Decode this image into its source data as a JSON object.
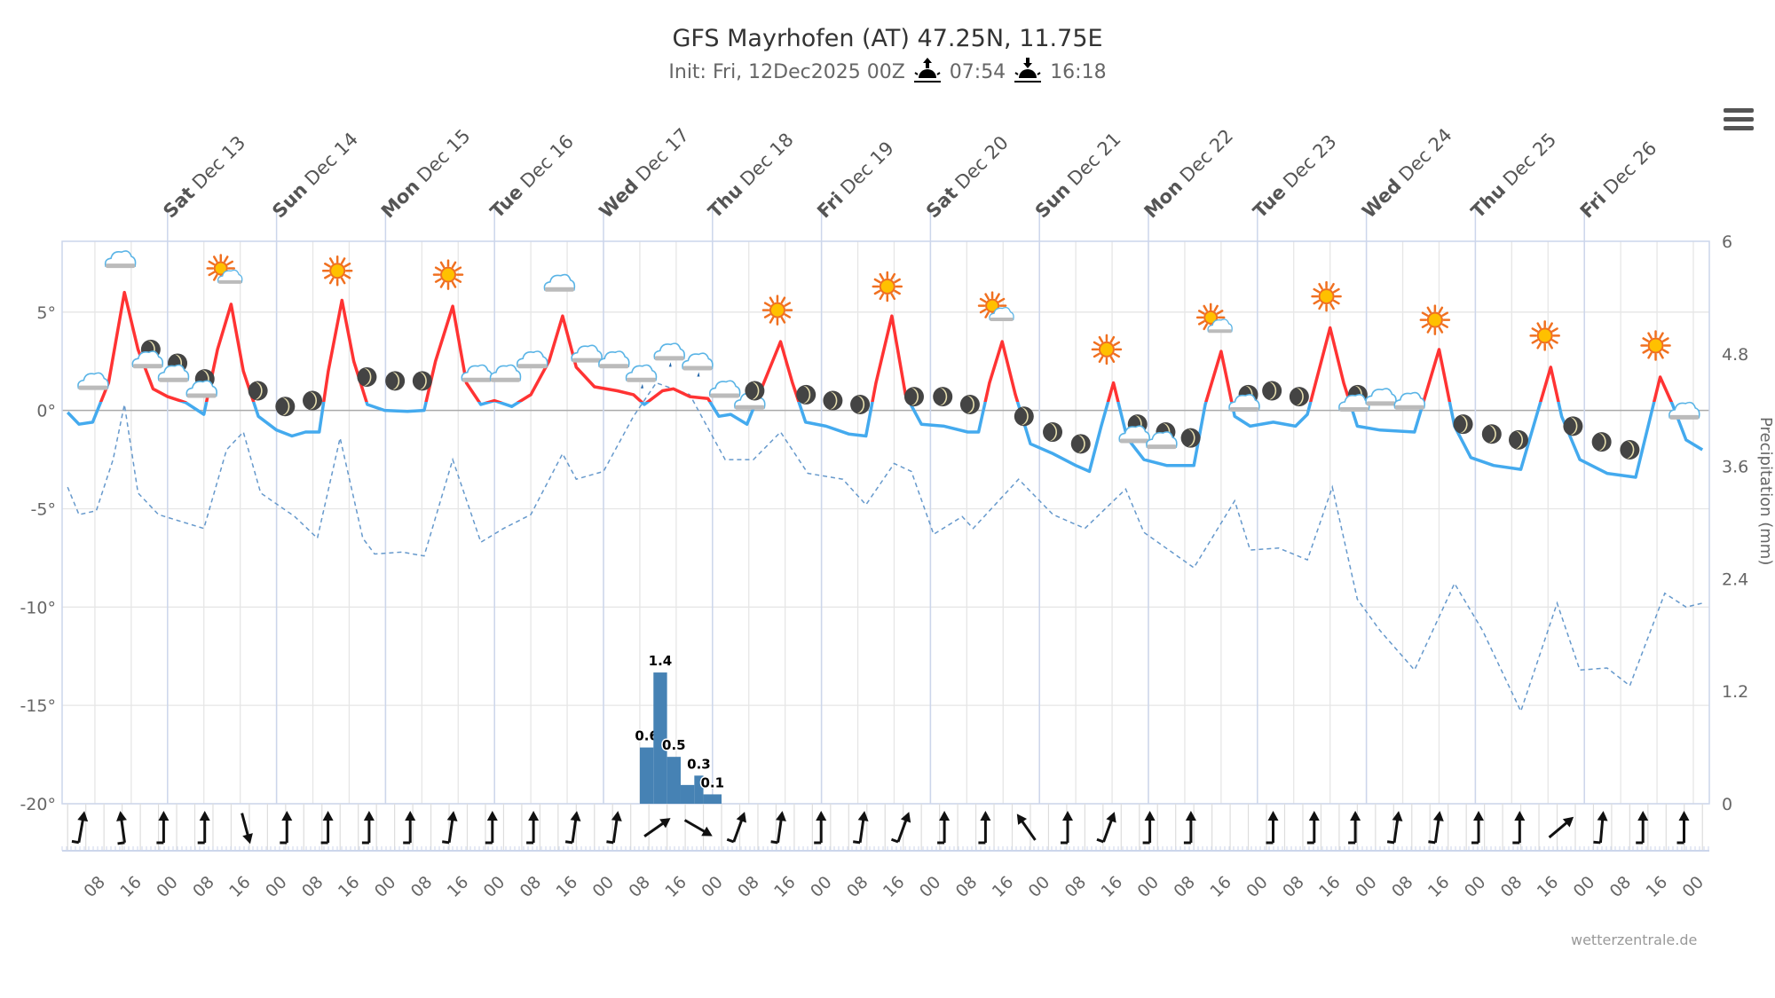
{
  "header": {
    "title": "GFS Mayrhofen (AT) 47.25N, 11.75E",
    "init": "Init: Fri, 12Dec2025 00Z",
    "sunrise": "07:54",
    "sunset": "16:18",
    "menu_icon": "hamburger-menu-icon"
  },
  "credits": "wetterzentrale.de",
  "colors": {
    "temp_above_zero": "#ff3333",
    "temp_below_zero": "#44aaee",
    "dashed_line": "#6699cc",
    "precip": "#4682b4",
    "grid": "#e6e6e6",
    "axis": "#ccd6eb"
  },
  "chart_data": {
    "type": "line",
    "title": "GFS Mayrhofen (AT) 47.25N, 11.75E",
    "x_unit": "hours since Fri 12 Dec 2025 00Z",
    "xlim": [
      0,
      363.5
    ],
    "day_labels": [
      {
        "h": 24,
        "wd": "Sat",
        "d": "Dec 13"
      },
      {
        "h": 48,
        "wd": "Sun",
        "d": "Dec 14"
      },
      {
        "h": 72,
        "wd": "Mon",
        "d": "Dec 15"
      },
      {
        "h": 96,
        "wd": "Tue",
        "d": "Dec 16"
      },
      {
        "h": 120,
        "wd": "Wed",
        "d": "Dec 17"
      },
      {
        "h": 144,
        "wd": "Thu",
        "d": "Dec 18"
      },
      {
        "h": 168,
        "wd": "Fri",
        "d": "Dec 19"
      },
      {
        "h": 192,
        "wd": "Sat",
        "d": "Dec 20"
      },
      {
        "h": 216,
        "wd": "Sun",
        "d": "Dec 21"
      },
      {
        "h": 240,
        "wd": "Mon",
        "d": "Dec 22"
      },
      {
        "h": 264,
        "wd": "Tue",
        "d": "Dec 23"
      },
      {
        "h": 288,
        "wd": "Wed",
        "d": "Dec 24"
      },
      {
        "h": 312,
        "wd": "Thu",
        "d": "Dec 25"
      },
      {
        "h": 336,
        "wd": "Fri",
        "d": "Dec 26"
      }
    ],
    "x_tick_labels": [
      "08",
      "16",
      "00"
    ],
    "y_left": {
      "ylim": [
        -20,
        8.6
      ],
      "ticks": [
        "5°",
        "0°",
        "-5°",
        "-10°",
        "-15°",
        "-20°"
      ],
      "tick_values": [
        5,
        0,
        -5,
        -10,
        -15,
        -20
      ]
    },
    "y_right": {
      "label": "Precipitation (mm)",
      "ylim": [
        0,
        6
      ],
      "ticks": [
        "6",
        "4.8",
        "3.6",
        "2.4",
        "1.2",
        "0"
      ],
      "tick_values": [
        6,
        4.8,
        3.6,
        2.4,
        1.2,
        0
      ]
    },
    "grid": true,
    "temperature": [
      [
        2,
        -0.1
      ],
      [
        4.5,
        -0.7
      ],
      [
        7.5,
        -0.6
      ],
      [
        11,
        1.4
      ],
      [
        14.5,
        6.0
      ],
      [
        17.5,
        3.1
      ],
      [
        20.8,
        1.1
      ],
      [
        24,
        0.7
      ],
      [
        28,
        0.4
      ],
      [
        32,
        -0.2
      ],
      [
        35,
        3.1
      ],
      [
        38,
        5.4
      ],
      [
        40.7,
        2.0
      ],
      [
        44,
        -0.3
      ],
      [
        48,
        -1.0
      ],
      [
        51.4,
        -1.3
      ],
      [
        54.4,
        -1.1
      ],
      [
        57.4,
        -1.1
      ],
      [
        59.4,
        2.0
      ],
      [
        62.4,
        5.6
      ],
      [
        65,
        2.5
      ],
      [
        68,
        0.3
      ],
      [
        71.8,
        0
      ],
      [
        76.8,
        -0.05
      ],
      [
        80.5,
        0
      ],
      [
        83,
        2.5
      ],
      [
        86.8,
        5.3
      ],
      [
        89.8,
        1.4
      ],
      [
        93,
        0.3
      ],
      [
        96,
        0.5
      ],
      [
        99.8,
        0.2
      ],
      [
        104,
        0.8
      ],
      [
        108,
        2.5
      ],
      [
        111,
        4.8
      ],
      [
        114,
        2.2
      ],
      [
        118,
        1.2
      ],
      [
        123,
        1.0
      ],
      [
        126.6,
        0.8
      ],
      [
        129,
        0.3
      ],
      [
        133,
        1.0
      ],
      [
        135.4,
        1.1
      ],
      [
        139,
        0.7
      ],
      [
        143,
        0.6
      ],
      [
        145.4,
        -0.3
      ],
      [
        148,
        -0.2
      ],
      [
        151.6,
        -0.7
      ],
      [
        155.3,
        1.4
      ],
      [
        159,
        3.5
      ],
      [
        161.6,
        1.4
      ],
      [
        164.5,
        -0.6
      ],
      [
        169,
        -0.8
      ],
      [
        174,
        -1.2
      ],
      [
        177.8,
        -1.3
      ],
      [
        180,
        1.4
      ],
      [
        183.5,
        4.8
      ],
      [
        186.5,
        0.8
      ],
      [
        190,
        -0.7
      ],
      [
        195,
        -0.8
      ],
      [
        200.2,
        -1.1
      ],
      [
        202.6,
        -1.1
      ],
      [
        205,
        1.4
      ],
      [
        207.8,
        3.5
      ],
      [
        210.7,
        0.8
      ],
      [
        214,
        -1.7
      ],
      [
        219,
        -2.2
      ],
      [
        224,
        -2.8
      ],
      [
        227,
        -3.1
      ],
      [
        229.6,
        -0.8
      ],
      [
        232.3,
        1.4
      ],
      [
        235.3,
        -1.4
      ],
      [
        239,
        -2.5
      ],
      [
        244,
        -2.8
      ],
      [
        250,
        -2.8
      ],
      [
        252.5,
        0.3
      ],
      [
        256,
        3.0
      ],
      [
        259,
        -0.3
      ],
      [
        262.4,
        -0.8
      ],
      [
        267.5,
        -0.6
      ],
      [
        272.4,
        -0.8
      ],
      [
        275,
        -0.2
      ],
      [
        280,
        4.2
      ],
      [
        283,
        1.4
      ],
      [
        286,
        -0.8
      ],
      [
        291,
        -1.0
      ],
      [
        298.6,
        -1.1
      ],
      [
        304,
        3.1
      ],
      [
        307.4,
        -0.8
      ],
      [
        311,
        -2.4
      ],
      [
        316,
        -2.8
      ],
      [
        322,
        -3.0
      ],
      [
        328.6,
        2.2
      ],
      [
        331,
        -0.3
      ],
      [
        335,
        -2.5
      ],
      [
        341,
        -3.2
      ],
      [
        347.3,
        -3.4
      ],
      [
        352.7,
        1.7
      ],
      [
        355.4,
        0.3
      ],
      [
        358.4,
        -1.5
      ],
      [
        362,
        -2.0
      ]
    ],
    "dashed_series": [
      [
        2,
        -3.9
      ],
      [
        4.5,
        -5.3
      ],
      [
        8.3,
        -5.1
      ],
      [
        12,
        -2.5
      ],
      [
        14.5,
        0.3
      ],
      [
        17.5,
        -4.2
      ],
      [
        22,
        -5.3
      ],
      [
        32,
        -6
      ],
      [
        37,
        -2
      ],
      [
        40.7,
        -1.1
      ],
      [
        44.5,
        -4.2
      ],
      [
        52,
        -5.4
      ],
      [
        57,
        -6.5
      ],
      [
        62,
        -1.4
      ],
      [
        67,
        -6.5
      ],
      [
        69.6,
        -7.3
      ],
      [
        75.6,
        -7.2
      ],
      [
        80.5,
        -7.4
      ],
      [
        86.8,
        -2.5
      ],
      [
        93,
        -6.7
      ],
      [
        98,
        -6
      ],
      [
        104,
        -5.3
      ],
      [
        111,
        -2.2
      ],
      [
        114,
        -3.5
      ],
      [
        120,
        -3.1
      ],
      [
        126.6,
        -0.3
      ],
      [
        131.6,
        1.4
      ],
      [
        139,
        0.8
      ],
      [
        146.8,
        -2.5
      ],
      [
        153,
        -2.5
      ],
      [
        159,
        -1.1
      ],
      [
        165,
        -3.2
      ],
      [
        172.7,
        -3.5
      ],
      [
        177.8,
        -4.8
      ],
      [
        184,
        -2.7
      ],
      [
        187.8,
        -3.1
      ],
      [
        192.7,
        -6.3
      ],
      [
        199,
        -5.4
      ],
      [
        201.4,
        -6
      ],
      [
        211.4,
        -3.5
      ],
      [
        219,
        -5.3
      ],
      [
        226,
        -6
      ],
      [
        235,
        -4
      ],
      [
        239,
        -6.2
      ],
      [
        250,
        -8
      ],
      [
        259,
        -4.6
      ],
      [
        262.4,
        -7.1
      ],
      [
        268.7,
        -7
      ],
      [
        275,
        -7.6
      ],
      [
        280.5,
        -3.9
      ],
      [
        286,
        -9.6
      ],
      [
        291,
        -11.2
      ],
      [
        298.6,
        -13.2
      ],
      [
        307.4,
        -8.8
      ],
      [
        313.6,
        -11.2
      ],
      [
        322,
        -15.3
      ],
      [
        330,
        -9.8
      ],
      [
        335,
        -13.2
      ],
      [
        341,
        -13.1
      ],
      [
        346,
        -14
      ],
      [
        353.7,
        -9.3
      ],
      [
        358.4,
        -10
      ],
      [
        362,
        -9.8
      ]
    ],
    "precipitation": [
      {
        "h": 128,
        "dur": 3,
        "mm": 0.6,
        "label": "0.6"
      },
      {
        "h": 131,
        "dur": 3,
        "mm": 1.4,
        "label": "1.4"
      },
      {
        "h": 134,
        "dur": 3,
        "mm": 0.5,
        "label": "0.5"
      },
      {
        "h": 137,
        "dur": 3,
        "mm": 0.2,
        "label": ""
      },
      {
        "h": 140,
        "dur": 2,
        "mm": 0.3,
        "label": "0.3"
      },
      {
        "h": 142,
        "dur": 4,
        "mm": 0.1,
        "label": "0.1"
      }
    ],
    "wind_directions_deg": [
      10,
      -8,
      0,
      0,
      165,
      0,
      0,
      0,
      0,
      8,
      0,
      0,
      8,
      8,
      55,
      120,
      20,
      8,
      0,
      8,
      20,
      0,
      0,
      -35,
      0,
      20,
      0,
      0,
      null,
      0,
      0,
      0,
      8,
      8,
      0,
      0,
      50,
      5,
      0,
      0
    ],
    "weather_icons": [
      {
        "icon": "cloud",
        "h": 13.5,
        "t": 7.6
      },
      {
        "icon": "cloud",
        "h": 7.5,
        "t": 1.4
      },
      {
        "icon": "moon",
        "h": 20.3,
        "t": 3.1
      },
      {
        "icon": "cloud",
        "h": 19.5,
        "t": 2.5
      },
      {
        "icon": "moon",
        "h": 26.2,
        "t": 2.4
      },
      {
        "icon": "cloud",
        "h": 25.2,
        "t": 1.8
      },
      {
        "icon": "moon",
        "h": 32.2,
        "t": 1.6
      },
      {
        "icon": "cloud",
        "h": 31.4,
        "t": 1.0
      },
      {
        "icon": "sun-cloud",
        "h": 36.5,
        "t": 7.0
      },
      {
        "icon": "sun",
        "h": 61.4,
        "t": 7.1
      },
      {
        "icon": "moon",
        "h": 43.9,
        "t": 1.0
      },
      {
        "icon": "moon",
        "h": 49.9,
        "t": 0.2
      },
      {
        "icon": "moon",
        "h": 55.9,
        "t": 0.5
      },
      {
        "icon": "sun",
        "h": 85.8,
        "t": 6.9
      },
      {
        "icon": "moon",
        "h": 67.9,
        "t": 1.7
      },
      {
        "icon": "moon",
        "h": 74.1,
        "t": 1.5
      },
      {
        "icon": "moon",
        "h": 80.1,
        "t": 1.5
      },
      {
        "icon": "cloud",
        "h": 92.0,
        "t": 1.8
      },
      {
        "icon": "cloud",
        "h": 98.3,
        "t": 1.8
      },
      {
        "icon": "cloud",
        "h": 104.2,
        "t": 2.5
      },
      {
        "icon": "cloud",
        "h": 110.2,
        "t": 6.4
      },
      {
        "icon": "cloud",
        "h": 116.2,
        "t": 2.8
      },
      {
        "icon": "cloud",
        "h": 122.2,
        "t": 2.5
      },
      {
        "icon": "rain-cloud",
        "h": 128.2,
        "t": 1.8
      },
      {
        "icon": "rain-cloud",
        "h": 134.4,
        "t": 2.9
      },
      {
        "icon": "rain-cloud",
        "h": 140.6,
        "t": 2.4
      },
      {
        "icon": "cloud",
        "h": 146.6,
        "t": 1.0
      },
      {
        "icon": "cloud",
        "h": 152.1,
        "t": 0.4
      },
      {
        "icon": "moon",
        "h": 153.3,
        "t": 1.0
      },
      {
        "icon": "sun",
        "h": 158.3,
        "t": 5.1
      },
      {
        "icon": "moon",
        "h": 164.6,
        "t": 0.8
      },
      {
        "icon": "moon",
        "h": 170.5,
        "t": 0.5
      },
      {
        "icon": "moon",
        "h": 176.5,
        "t": 0.3
      },
      {
        "icon": "sun",
        "h": 182.5,
        "t": 6.3
      },
      {
        "icon": "moon",
        "h": 188.4,
        "t": 0.7
      },
      {
        "icon": "moon",
        "h": 194.7,
        "t": 0.7
      },
      {
        "icon": "moon",
        "h": 200.7,
        "t": 0.3
      },
      {
        "icon": "sun-cloud",
        "h": 206.4,
        "t": 5.1
      },
      {
        "icon": "moon",
        "h": 212.6,
        "t": -0.3
      },
      {
        "icon": "moon",
        "h": 218.9,
        "t": -1.1
      },
      {
        "icon": "moon",
        "h": 225.1,
        "t": -1.7
      },
      {
        "icon": "sun",
        "h": 230.8,
        "t": 3.1
      },
      {
        "icon": "moon",
        "h": 237.6,
        "t": -0.7
      },
      {
        "icon": "cloud",
        "h": 236.8,
        "t": -1.3
      },
      {
        "icon": "moon",
        "h": 243.8,
        "t": -1.1
      },
      {
        "icon": "cloud",
        "h": 242.8,
        "t": -1.6
      },
      {
        "icon": "moon",
        "h": 249.3,
        "t": -1.4
      },
      {
        "icon": "sun-cloud",
        "h": 254.5,
        "t": 4.5
      },
      {
        "icon": "moon",
        "h": 262.0,
        "t": 0.8
      },
      {
        "icon": "cloud",
        "h": 261.0,
        "t": 0.3
      },
      {
        "icon": "moon",
        "h": 267.2,
        "t": 1.0
      },
      {
        "icon": "moon",
        "h": 273.2,
        "t": 0.7
      },
      {
        "icon": "sun",
        "h": 279.2,
        "t": 5.8
      },
      {
        "icon": "moon",
        "h": 286.1,
        "t": 0.8
      },
      {
        "icon": "cloud",
        "h": 285.2,
        "t": 0.3
      },
      {
        "icon": "cloud",
        "h": 291.1,
        "t": 0.6
      },
      {
        "icon": "cloud",
        "h": 297.4,
        "t": 0.4
      },
      {
        "icon": "sun",
        "h": 303.1,
        "t": 4.6
      },
      {
        "icon": "moon",
        "h": 309.3,
        "t": -0.7
      },
      {
        "icon": "moon",
        "h": 315.6,
        "t": -1.2
      },
      {
        "icon": "moon",
        "h": 321.5,
        "t": -1.5
      },
      {
        "icon": "sun",
        "h": 327.3,
        "t": 3.8
      },
      {
        "icon": "moon",
        "h": 333.5,
        "t": -0.8
      },
      {
        "icon": "moon",
        "h": 339.8,
        "t": -1.6
      },
      {
        "icon": "moon",
        "h": 346.0,
        "t": -2.0
      },
      {
        "icon": "sun",
        "h": 351.7,
        "t": 3.3
      },
      {
        "icon": "cloud",
        "h": 357.9,
        "t": -0.1
      }
    ]
  }
}
